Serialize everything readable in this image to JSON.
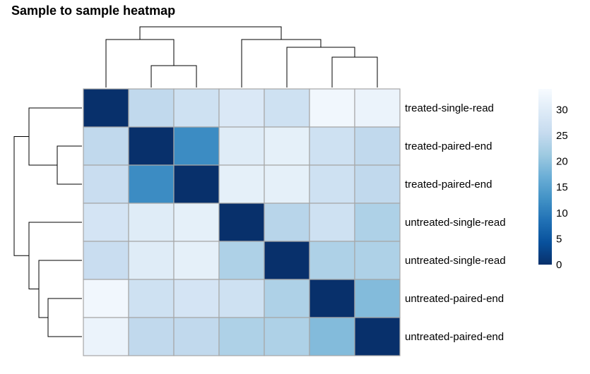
{
  "title": "Sample to sample heatmap",
  "chart_data": {
    "type": "heatmap",
    "title": "Sample to sample heatmap",
    "row_labels": [
      "treated-single-read",
      "treated-paired-end",
      "treated-paired-end",
      "untreated-single-read",
      "untreated-single-read",
      "untreated-paired-end",
      "untreated-paired-end"
    ],
    "column_labels": [],
    "values": [
      [
        0,
        25,
        27,
        29,
        27,
        33,
        32
      ],
      [
        25,
        0,
        12,
        30,
        31,
        27,
        25
      ],
      [
        26,
        12,
        0,
        31,
        31,
        27,
        25
      ],
      [
        28,
        30,
        31,
        0,
        24,
        27,
        23
      ],
      [
        26,
        30,
        31,
        23,
        0,
        23,
        23
      ],
      [
        33,
        27,
        28,
        27,
        23,
        0,
        19
      ],
      [
        32,
        25,
        25,
        23,
        23,
        19,
        0
      ]
    ],
    "colorbar": {
      "ticks": [
        0,
        5,
        10,
        15,
        20,
        25,
        30
      ],
      "min": 0,
      "max": 34,
      "colors": [
        "#08306b",
        "#08519c",
        "#2171b5",
        "#4292c6",
        "#6baed6",
        "#9ecae1",
        "#c6dbef",
        "#deebf7",
        "#f7fbff"
      ]
    },
    "dendrogram": {
      "rows": true,
      "columns": true
    }
  }
}
